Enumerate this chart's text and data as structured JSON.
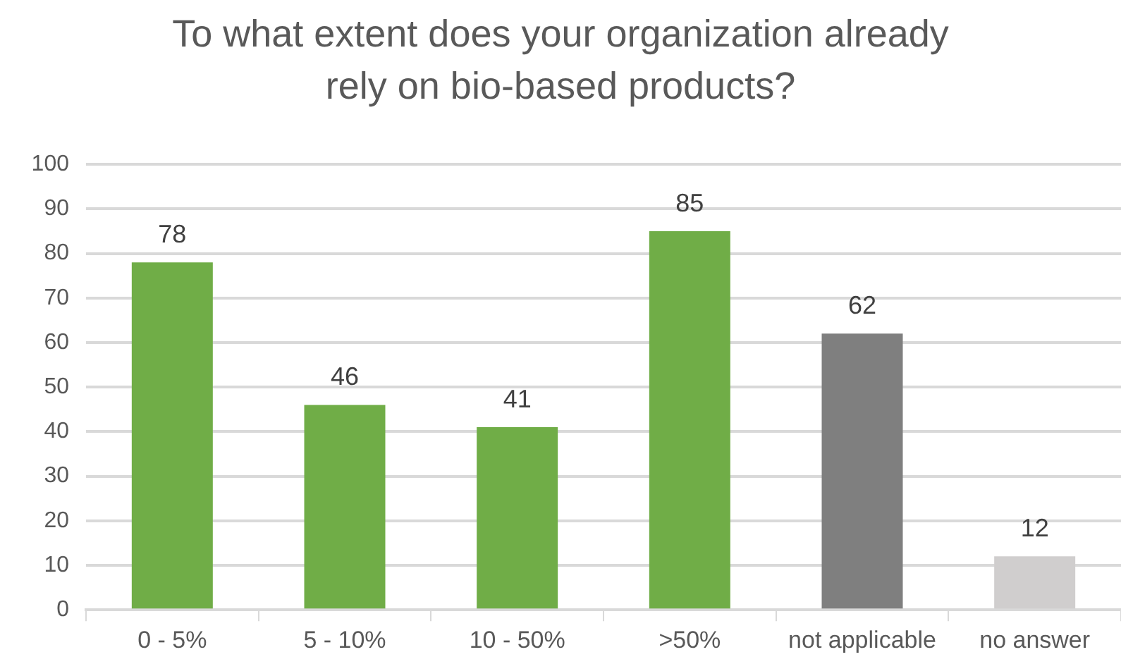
{
  "chart_data": {
    "type": "bar",
    "title": "To what extent does your organization already rely on bio-based products?",
    "categories": [
      "0 - 5%",
      "5 - 10%",
      "10 - 50%",
      ">50%",
      "not applicable",
      "no answer"
    ],
    "values": [
      78,
      46,
      41,
      85,
      62,
      12
    ],
    "colors": [
      "#70ad47",
      "#70ad47",
      "#70ad47",
      "#70ad47",
      "#7f7f7f",
      "#d0cece"
    ],
    "ylim": [
      0,
      100
    ],
    "yticks": [
      0,
      10,
      20,
      30,
      40,
      50,
      60,
      70,
      80,
      90,
      100
    ],
    "grid": "y",
    "data_labels": true
  }
}
